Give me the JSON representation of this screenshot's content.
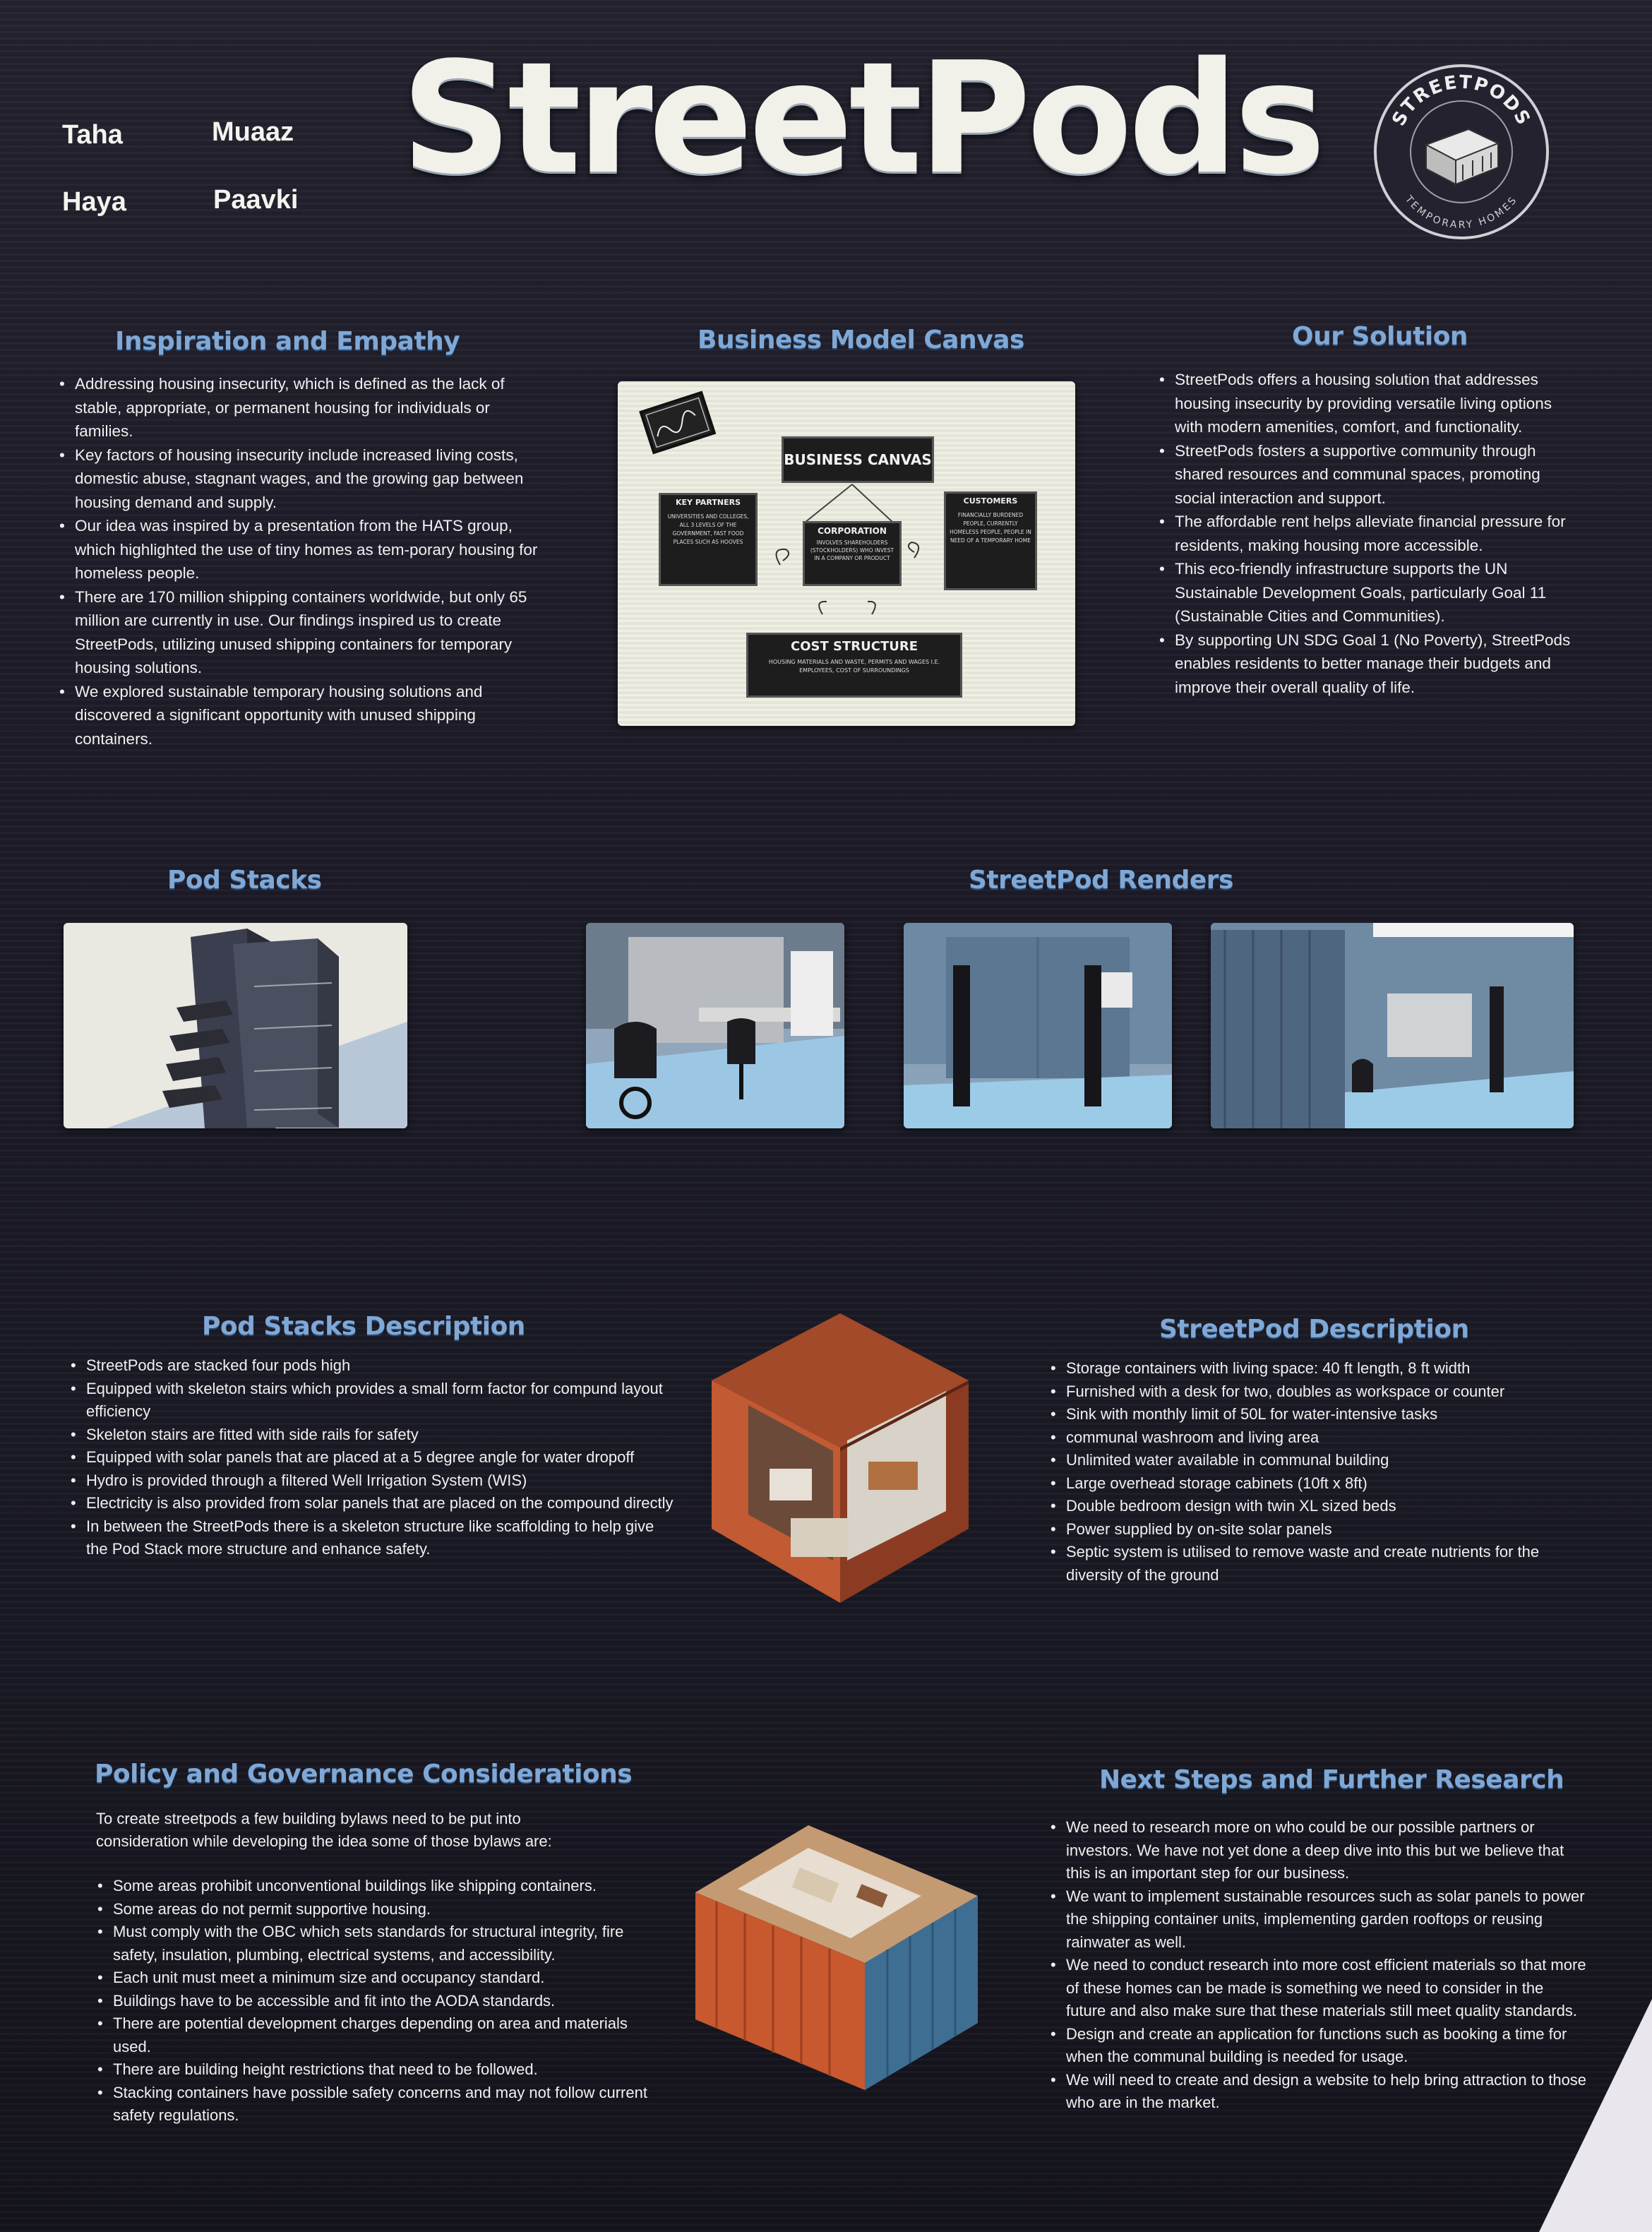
{
  "header": {
    "members": [
      "Taha",
      "Muaaz",
      "Haya",
      "Paavki"
    ],
    "title": "StreetPods",
    "logo": {
      "ring_text_top": "STREETPODS",
      "ring_text_bottom": "TEMPORARY HOMES",
      "icon": "pod-icon"
    }
  },
  "inspiration": {
    "heading": "Inspiration and Empathy",
    "items": [
      "Addressing housing insecurity, which is defined as the lack of stable, appropriate, or permanent housing for individuals or families.",
      "Key factors of housing insecurity include increased living costs, domestic abuse, stagnant wages, and the growing gap between housing demand and supply.",
      "Our idea was inspired by a presentation from the HATS group, which highlighted the use of tiny homes as tem-porary housing for homeless people.",
      "There are 170 million shipping containers worldwide, but only 65 million are currently in use. Our findings inspired us to create StreetPods, utilizing unused shipping containers for temporary housing solutions.",
      "We explored sustainable temporary housing solutions and discovered a significant opportunity with unused shipping containers."
    ]
  },
  "canvas": {
    "heading": "Business Model Canvas",
    "board_title": "BUSINESS CANVAS",
    "key_partners": {
      "title": "KEY PARTNERS",
      "text": "UNIVERSITIES AND COLLEGES, ALL 3 LEVELS OF THE GOVERNMENT, FAST FOOD PLACES SUCH AS HOOVES"
    },
    "corporation": {
      "title": "CORPORATION",
      "text": "INVOLVES SHAREHOLDERS (STOCKHOLDERS) WHO INVEST IN A COMPANY OR PRODUCT"
    },
    "customers": {
      "title": "CUSTOMERS",
      "text": "FINANCIALLY BURDENED PEOPLE, CURRENTLY HOMELESS PEOPLE, PEOPLE IN NEED OF A TEMPORARY HOME"
    },
    "cost": {
      "title": "COST STRUCTURE",
      "text": "HOUSING MATERIALS AND WASTE, PERMITS AND WAGES I.E. EMPLOYEES, COST OF SURROUNDINGS"
    }
  },
  "solution": {
    "heading": "Our Solution",
    "items": [
      "StreetPods offers a housing solution that addresses housing insecurity by providing versatile living options with modern amenities, comfort, and functionality.",
      "StreetPods fosters a supportive community through shared resources and communal spaces, promoting social interaction and support.",
      "The affordable rent helps alleviate financial pressure for residents, making housing more accessible.",
      "This eco-friendly infrastructure supports the UN Sustainable Development Goals, particularly Goal 11 (Sustainable Cities and Communities).",
      "By supporting UN SDG Goal 1 (No Poverty), StreetPods enables residents to better manage their budgets and improve their overall quality of life."
    ]
  },
  "pod_stacks": {
    "heading": "Pod Stacks"
  },
  "renders": {
    "heading": "StreetPod Renders"
  },
  "stacks_desc": {
    "heading": "Pod Stacks Description",
    "items": [
      "StreetPods are stacked four pods high",
      "Equipped with skeleton stairs which provides a small form factor for compund layout efficiency",
      "Skeleton stairs are fitted with side rails for safety",
      "Equipped with solar panels that are placed at a 5 degree angle for water dropoff",
      "Hydro is provided through a filtered Well Irrigation System (WIS)",
      "Electricity is also provided from solar panels that are placed on the compound directly",
      "In between the StreetPods there is a skeleton structure like scaffolding to help give the Pod Stack more structure and enhance safety."
    ]
  },
  "pod_desc": {
    "heading": "StreetPod Description",
    "items": [
      "Storage containers with living space: 40 ft length, 8 ft width",
      "Furnished with a desk for two, doubles as workspace or counter",
      "Sink with monthly limit of 50L for water-intensive tasks",
      "communal washroom and living area",
      "Unlimited water available in communal building",
      "Large overhead storage cabinets (10ft x 8ft)",
      "Double bedroom design with twin XL sized beds",
      "Power supplied by on-site solar panels",
      "Septic system is utilised to remove waste and create nutrients for the diversity of the ground"
    ]
  },
  "policy": {
    "heading": "Policy and Governance Considerations",
    "intro": "To create streetpods a few building bylaws need to be put into consideration while developing the idea some of those bylaws are:",
    "items": [
      "Some areas prohibit unconventional buildings like shipping containers.",
      "Some areas do not permit supportive housing.",
      "Must comply with the OBC which sets standards for structural integrity, fire safety, insulation, plumbing, electrical systems, and accessibility.",
      "Each unit must meet a minimum size and occupancy standard.",
      "Buildings have to be accessible and fit into the AODA standards.",
      "There are potential development charges depending on area and materials used.",
      "There are building height restrictions that need to be followed.",
      "Stacking containers have possible safety concerns and may not follow current safety regulations."
    ]
  },
  "next": {
    "heading": "Next Steps and Further Research",
    "items": [
      "We need to research more on who could be our possible partners or investors. We have not yet done a deep dive into this but we believe that this is an important step for our business.",
      "We want to implement sustainable resources such as solar panels to power the shipping container units, implementing garden rooftops or reusing rainwater as well.",
      "We need to conduct research into more cost efficient materials so that more of these homes can be made is something we need to consider in the future and also make sure that these materials still meet quality standards.",
      "Design and create an application for functions such as booking a time for when the communal building is needed for usage.",
      "We will need to create and design a website to help bring attraction to those who are in the market."
    ]
  }
}
